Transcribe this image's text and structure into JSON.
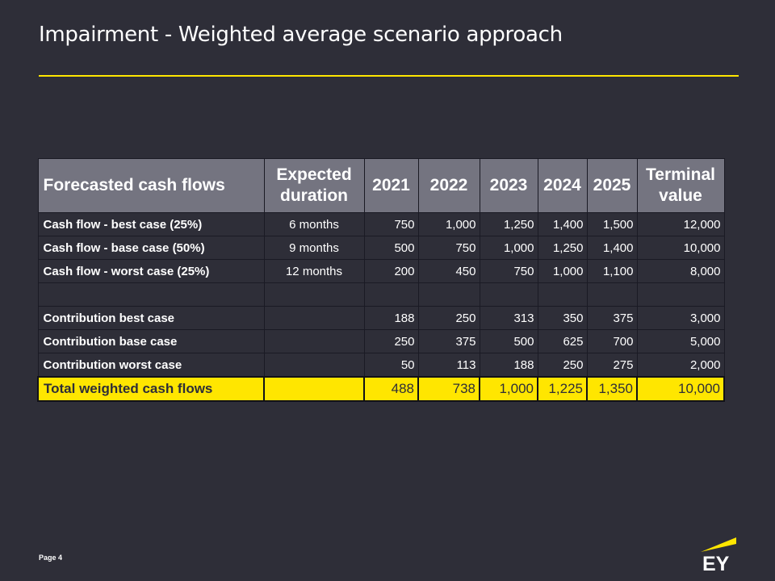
{
  "slide": {
    "title": "Impairment - Weighted average scenario approach",
    "page_label": "Page 4",
    "logo_text": "EY"
  },
  "colors": {
    "background": "#2e2e38",
    "accent_yellow": "#ffe600",
    "header_gray": "#747480",
    "text": "#ffffff"
  },
  "table": {
    "headers": [
      "Forecasted cash flows",
      "Expected duration",
      "2021",
      "2022",
      "2023",
      "2024",
      "2025",
      "Terminal value"
    ],
    "scenario_rows": [
      {
        "label": "Cash flow - best case (25%)",
        "duration": "6 months",
        "values": [
          "750",
          "1,000",
          "1,250",
          "1,400",
          "1,500",
          "12,000"
        ]
      },
      {
        "label": "Cash flow - base case (50%)",
        "duration": "9 months",
        "values": [
          "500",
          "750",
          "1,000",
          "1,250",
          "1,400",
          "10,000"
        ]
      },
      {
        "label": "Cash flow - worst case (25%)",
        "duration": "12 months",
        "values": [
          "200",
          "450",
          "750",
          "1,000",
          "1,100",
          "8,000"
        ]
      }
    ],
    "contribution_rows": [
      {
        "label": "Contribution best case",
        "duration": "",
        "values": [
          "188",
          "250",
          "313",
          "350",
          "375",
          "3,000"
        ]
      },
      {
        "label": "Contribution base case",
        "duration": "",
        "values": [
          "250",
          "375",
          "500",
          "625",
          "700",
          "5,000"
        ]
      },
      {
        "label": "Contribution worst case",
        "duration": "",
        "values": [
          "50",
          "113",
          "188",
          "250",
          "275",
          "2,000"
        ]
      }
    ],
    "total_row": {
      "label": "Total weighted cash flows",
      "duration": "",
      "values": [
        "488",
        "738",
        "1,000",
        "1,225",
        "1,350",
        "10,000"
      ]
    }
  }
}
